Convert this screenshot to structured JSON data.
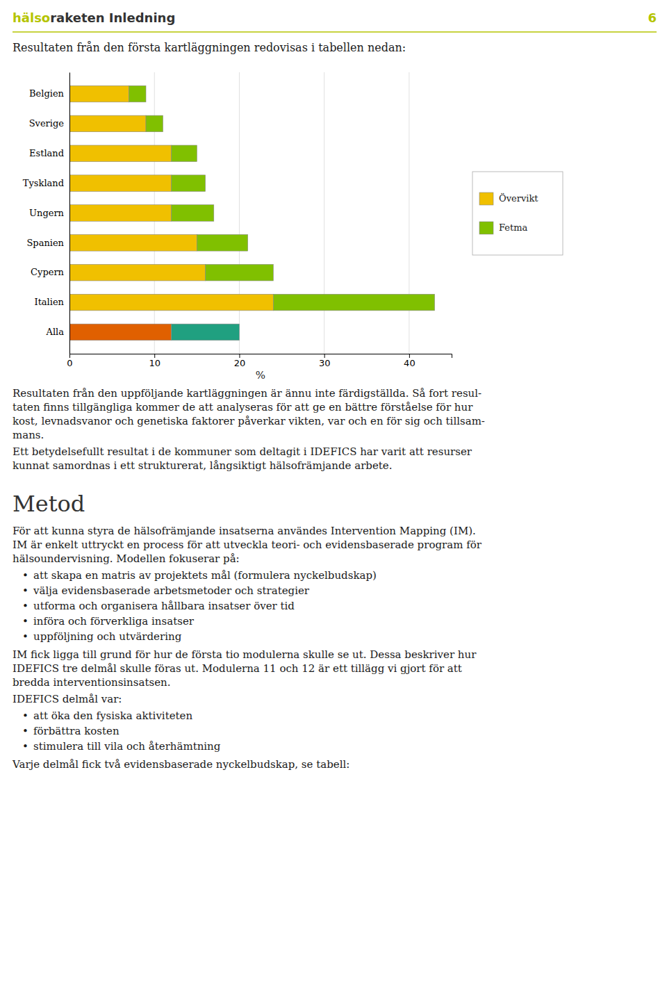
{
  "chart_data": {
    "type": "bar",
    "orientation": "horizontal",
    "stacked": true,
    "categories": [
      "Belgien",
      "Sverige",
      "Estland",
      "Tyskland",
      "Ungern",
      "Spanien",
      "Cypern",
      "Italien",
      "Alla"
    ],
    "series": [
      {
        "name": "Övervikt",
        "color": "#f0c000",
        "colors": [
          "#f0c000",
          "#f0c000",
          "#f0c000",
          "#f0c000",
          "#f0c000",
          "#f0c000",
          "#f0c000",
          "#f0c000",
          "#e06000"
        ],
        "values": [
          7,
          9,
          12,
          12,
          12,
          15,
          16,
          24,
          12
        ]
      },
      {
        "name": "Fetma",
        "color": "#80c000",
        "colors": [
          "#80c000",
          "#80c000",
          "#80c000",
          "#80c000",
          "#80c000",
          "#80c000",
          "#80c000",
          "#80c000",
          "#20a080"
        ],
        "values": [
          2,
          2,
          3,
          4,
          5,
          6,
          8,
          19,
          8
        ]
      }
    ],
    "xlabel": "%",
    "xlim": [
      0,
      45
    ],
    "xticks": [
      0,
      10,
      20,
      30,
      40
    ],
    "grid": true,
    "legend": "right"
  },
  "page": {
    "header_halso": "hälso",
    "header_rest": "raketen Inledning",
    "page_number": "6",
    "header_line_color": "#b5c400",
    "header_text_color_halso": "#b5c400",
    "header_text_color_rest": "#333333",
    "chart_intro": "Resultaten från den första kartläggningen redovisas i tabellen nedan:",
    "followup_lines": [
      "Resultaten från den uppföljande kartläggningen är ännu inte färdigställda. Så fort resul-",
      "taten  finns tillgängliga kommer de att analyseras  för att ge en bättre förståelse för hur",
      "kost, levnadsvanor och genetiska faktorer påverkar vikten, var och en för sig och tillsam-",
      "mans."
    ],
    "ett_lines": [
      "Ett betydelsefullt resultat i de kommuner som deltagit i IDEFICS har varit att resurser",
      "kunnat samordnas i ett strukturerat, långsiktigt hälsofrämjande arbete."
    ],
    "metod_title": "Metod",
    "metod_para1_lines": [
      "För att kunna styra de hälsofrämjande insatserna användes Intervention Mapping (IM).",
      "IM är enkelt uttryckt en process för att utveckla teori- och evidensbaserade program för",
      "hälsoundervisning. Modellen fokuserar på:"
    ],
    "bullet": "•",
    "metod_bullets1": [
      "att skapa en matris av projektets mål (formulera nyckelbudskap)",
      "välja evidensbaserade arbetsmetoder och strategier",
      "utforma och organisera hållbara insatser över tid",
      "införa och förverkliga insatser",
      "uppföljning och utvärdering"
    ],
    "metod_para2_lines": [
      "IM fick ligga till grund för hur de första tio modulerna skulle se ut. Dessa beskriver hur",
      "IDEFICS tre delmål skulle föras ut. Modulerna 11 och 12 är ett tillägg vi gjort för att",
      "bredda interventionsinsatsen."
    ],
    "idefics_intro": "IDEFICS delmål var:",
    "idefics_bullets": [
      "att öka den fysiska aktiviteten",
      "förbättra kosten",
      "stimulera till vila och återhämtning"
    ],
    "varje_text": "Varje delmål fick två evidensbaserade nyckelbudskap, se tabell:"
  }
}
